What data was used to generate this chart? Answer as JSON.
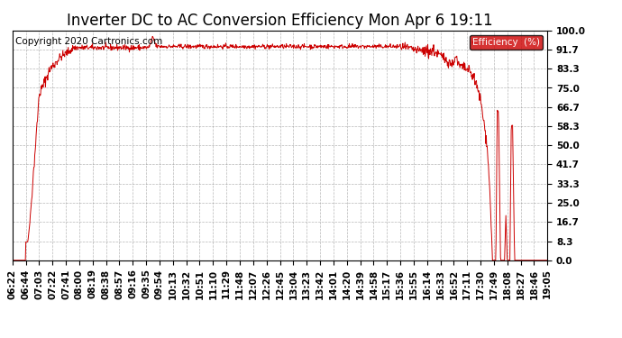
{
  "title": "Inverter DC to AC Conversion Efficiency Mon Apr 6 19:11",
  "copyright": "Copyright 2020 Cartronics.com",
  "legend_label": "Efficiency  (%)",
  "legend_bg": "#cc0000",
  "legend_fg": "#ffffff",
  "line_color": "#cc0000",
  "bg_color": "#ffffff",
  "grid_color": "#888888",
  "yticks": [
    0.0,
    8.3,
    16.7,
    25.0,
    33.3,
    41.7,
    50.0,
    58.3,
    66.7,
    75.0,
    83.3,
    91.7,
    100.0
  ],
  "xtick_labels": [
    "06:22",
    "06:44",
    "07:03",
    "07:22",
    "07:41",
    "08:00",
    "08:19",
    "08:38",
    "08:57",
    "09:16",
    "09:35",
    "09:54",
    "10:13",
    "10:32",
    "10:51",
    "11:10",
    "11:29",
    "11:48",
    "12:07",
    "12:26",
    "12:45",
    "13:04",
    "13:23",
    "13:42",
    "14:01",
    "14:20",
    "14:39",
    "14:58",
    "15:17",
    "15:36",
    "15:55",
    "16:14",
    "16:33",
    "16:52",
    "17:11",
    "17:30",
    "17:49",
    "18:08",
    "18:27",
    "18:46",
    "19:05"
  ],
  "ylim": [
    0.0,
    100.0
  ],
  "title_fontsize": 12,
  "axis_fontsize": 7.5,
  "copyright_fontsize": 7.5
}
